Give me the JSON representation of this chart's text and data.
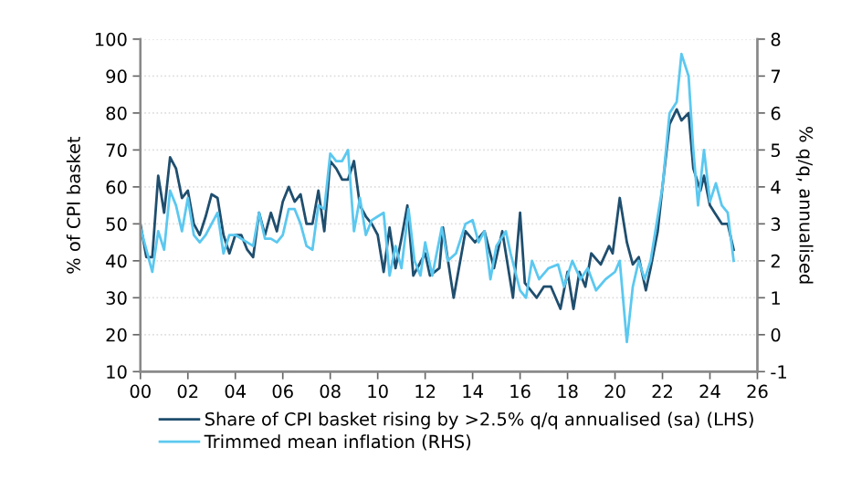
{
  "chart_data": {
    "type": "line",
    "ylabel": "% of CPI basket",
    "y2label": "% q/q, annualised",
    "xlim": [
      2000,
      2026
    ],
    "xticks": [
      {
        "value": 2000,
        "label": "00"
      },
      {
        "value": 2002,
        "label": "02"
      },
      {
        "value": 2004,
        "label": "04"
      },
      {
        "value": 2006,
        "label": "06"
      },
      {
        "value": 2008,
        "label": "08"
      },
      {
        "value": 2010,
        "label": "10"
      },
      {
        "value": 2012,
        "label": "12"
      },
      {
        "value": 2014,
        "label": "14"
      },
      {
        "value": 2016,
        "label": "16"
      },
      {
        "value": 2018,
        "label": "18"
      },
      {
        "value": 2020,
        "label": "20"
      },
      {
        "value": 2022,
        "label": "22"
      },
      {
        "value": 2024,
        "label": "24"
      },
      {
        "value": 2026,
        "label": "26"
      }
    ],
    "ylim": [
      10,
      100
    ],
    "yticks": [
      10,
      20,
      30,
      40,
      50,
      60,
      70,
      80,
      90,
      100
    ],
    "y2lim": [
      -1,
      8
    ],
    "y2ticks": [
      -1,
      0,
      1,
      2,
      3,
      4,
      5,
      6,
      7,
      8
    ],
    "grid": "y",
    "legend": "bottom",
    "series": [
      {
        "name": "Share of CPI basket rising by >2.5% q/q annualised (sa) (LHS)",
        "color": "#1f4e6e",
        "axis": "y",
        "x": [
          2000,
          2000.25,
          2000.5,
          2000.75,
          2001,
          2001.25,
          2001.5,
          2001.75,
          2002,
          2002.25,
          2002.5,
          2002.75,
          2003,
          2003.25,
          2003.5,
          2003.75,
          2004,
          2004.25,
          2004.5,
          2004.75,
          2005,
          2005.25,
          2005.5,
          2005.75,
          2006,
          2006.25,
          2006.5,
          2006.75,
          2007,
          2007.25,
          2007.5,
          2007.75,
          2008,
          2008.25,
          2008.5,
          2008.75,
          2009,
          2009.25,
          2009.5,
          2009.75,
          2010,
          2010.25,
          2010.5,
          2010.75,
          2011,
          2011.25,
          2011.5,
          2012,
          2012.2,
          2012.6,
          2012.75,
          2013.2,
          2013.7,
          2014.1,
          2014.5,
          2014.9,
          2015.25,
          2015.7,
          2016,
          2016.2,
          2016.7,
          2017,
          2017.3,
          2017.7,
          2018,
          2018.25,
          2018.5,
          2018.75,
          2019,
          2019.4,
          2019.75,
          2019.9,
          2020.2,
          2020.5,
          2020.75,
          2021,
          2021.3,
          2021.5,
          2021.8,
          2022,
          2022.3,
          2022.6,
          2022.8,
          2023.1,
          2023.3,
          2023.6,
          2023.75,
          2024,
          2024.2,
          2024.5,
          2024.75,
          2025
        ],
        "values": [
          50,
          41,
          41,
          63,
          53,
          68,
          65,
          57,
          59,
          50,
          47,
          52,
          58,
          57,
          47,
          42,
          47,
          47,
          43,
          41,
          53,
          47,
          53,
          48,
          56,
          60,
          56,
          58,
          50,
          50,
          59,
          48,
          67,
          65,
          62,
          62,
          67,
          55,
          52,
          50,
          47,
          37,
          49,
          38,
          46,
          55,
          36,
          42,
          36,
          38,
          49,
          30,
          48,
          45,
          48,
          38,
          48,
          30,
          53,
          34,
          30,
          33,
          33,
          27,
          37,
          27,
          37,
          33,
          42,
          39,
          44,
          42,
          57,
          45,
          39,
          41,
          32,
          38,
          48,
          60,
          77,
          81,
          78,
          80,
          65,
          59,
          63,
          55,
          53,
          50,
          50,
          43
        ]
      },
      {
        "name": "Trimmed mean inflation (RHS)",
        "color": "#5bc8f0",
        "axis": "y2",
        "x": [
          2000,
          2000.25,
          2000.5,
          2000.75,
          2001,
          2001.25,
          2001.5,
          2001.75,
          2002,
          2002.25,
          2002.5,
          2002.75,
          2003,
          2003.25,
          2003.5,
          2003.75,
          2004,
          2004.25,
          2004.5,
          2004.75,
          2005,
          2005.25,
          2005.5,
          2005.75,
          2006,
          2006.25,
          2006.5,
          2006.75,
          2007,
          2007.25,
          2007.5,
          2007.75,
          2008,
          2008.25,
          2008.5,
          2008.75,
          2009,
          2009.25,
          2009.5,
          2009.75,
          2010,
          2010.25,
          2010.5,
          2010.75,
          2011,
          2011.3,
          2011.55,
          2011.8,
          2012,
          2012.3,
          2012.7,
          2012.95,
          2013.3,
          2013.7,
          2014,
          2014.25,
          2014.5,
          2014.75,
          2015,
          2015.4,
          2015.6,
          2016,
          2016.25,
          2016.5,
          2016.8,
          2017.2,
          2017.6,
          2017.85,
          2018.2,
          2018.55,
          2018.85,
          2019.2,
          2019.6,
          2020,
          2020.2,
          2020.5,
          2020.75,
          2021,
          2021.25,
          2021.5,
          2021.75,
          2022,
          2022.3,
          2022.6,
          2022.8,
          2023.1,
          2023.3,
          2023.5,
          2023.75,
          2024,
          2024.25,
          2024.5,
          2024.75,
          2025
        ],
        "values": [
          2.9,
          2.3,
          1.7,
          2.8,
          2.3,
          3.9,
          3.5,
          2.8,
          3.7,
          2.7,
          2.5,
          2.7,
          3.0,
          3.3,
          2.2,
          2.7,
          2.7,
          2.6,
          2.5,
          2.4,
          3.3,
          2.6,
          2.6,
          2.5,
          2.7,
          3.4,
          3.4,
          3.0,
          2.4,
          2.3,
          3.5,
          3.4,
          4.9,
          4.7,
          4.7,
          5.0,
          2.8,
          3.7,
          2.7,
          3.1,
          3.2,
          3.3,
          1.6,
          2.4,
          1.8,
          3.4,
          2.0,
          1.6,
          2.5,
          1.6,
          2.9,
          2.0,
          2.2,
          3.0,
          3.1,
          2.5,
          2.8,
          1.5,
          2.4,
          2.8,
          2.2,
          1.2,
          1.0,
          2.0,
          1.5,
          1.8,
          1.9,
          1.3,
          2.0,
          1.5,
          1.8,
          1.2,
          1.5,
          1.7,
          2.0,
          -0.2,
          1.3,
          2.0,
          1.5,
          2.0,
          3.0,
          4.0,
          6.0,
          6.3,
          7.6,
          7.0,
          5.0,
          3.5,
          5.0,
          3.6,
          4.1,
          3.5,
          3.3,
          2.0
        ]
      }
    ]
  }
}
